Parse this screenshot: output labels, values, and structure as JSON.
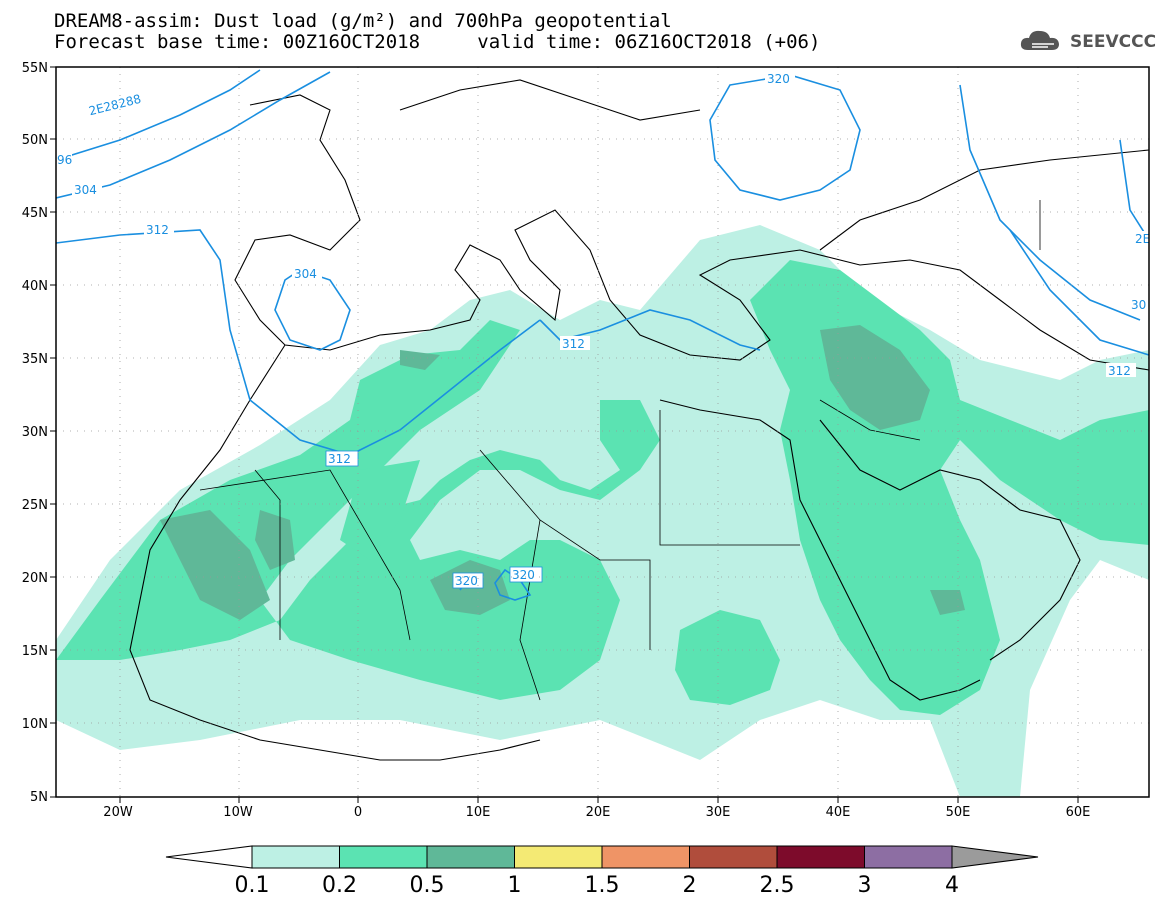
{
  "title_line1": "DREAM8-assim: Dust load (g/m²) and 700hPa geopotential",
  "title_line2_base": "Forecast base time: 00Z16OCT2018",
  "title_line2_valid": "valid time: 06Z16OCT2018 (+06)",
  "logo_text": "SEEVCCC",
  "lat_labels": [
    "55N",
    "50N",
    "45N",
    "40N",
    "35N",
    "30N",
    "25N",
    "20N",
    "15N",
    "10N",
    "5N"
  ],
  "lon_labels": [
    "20W",
    "10W",
    "0",
    "10E",
    "20E",
    "30E",
    "40E",
    "50E",
    "60E"
  ],
  "colorbar": {
    "ticks": [
      "0.1",
      "0.2",
      "0.5",
      "1",
      "1.5",
      "2",
      "2.5",
      "3",
      "4"
    ],
    "colors": [
      "#bdf0e4",
      "#5be3b2",
      "#5fb898",
      "#f4ea74",
      "#ef9466",
      "#b04d3c",
      "#7d0b2b",
      "#8d6ea3"
    ],
    "under_color": "#ffffff",
    "over_color": "#9b9b9b"
  },
  "contour_labels": [
    "2E28288",
    "96",
    "304",
    "312",
    "304",
    "312",
    "312",
    "320",
    "320",
    "320",
    "312",
    "30",
    "2E"
  ],
  "contour_color": "#1a8fe0"
}
